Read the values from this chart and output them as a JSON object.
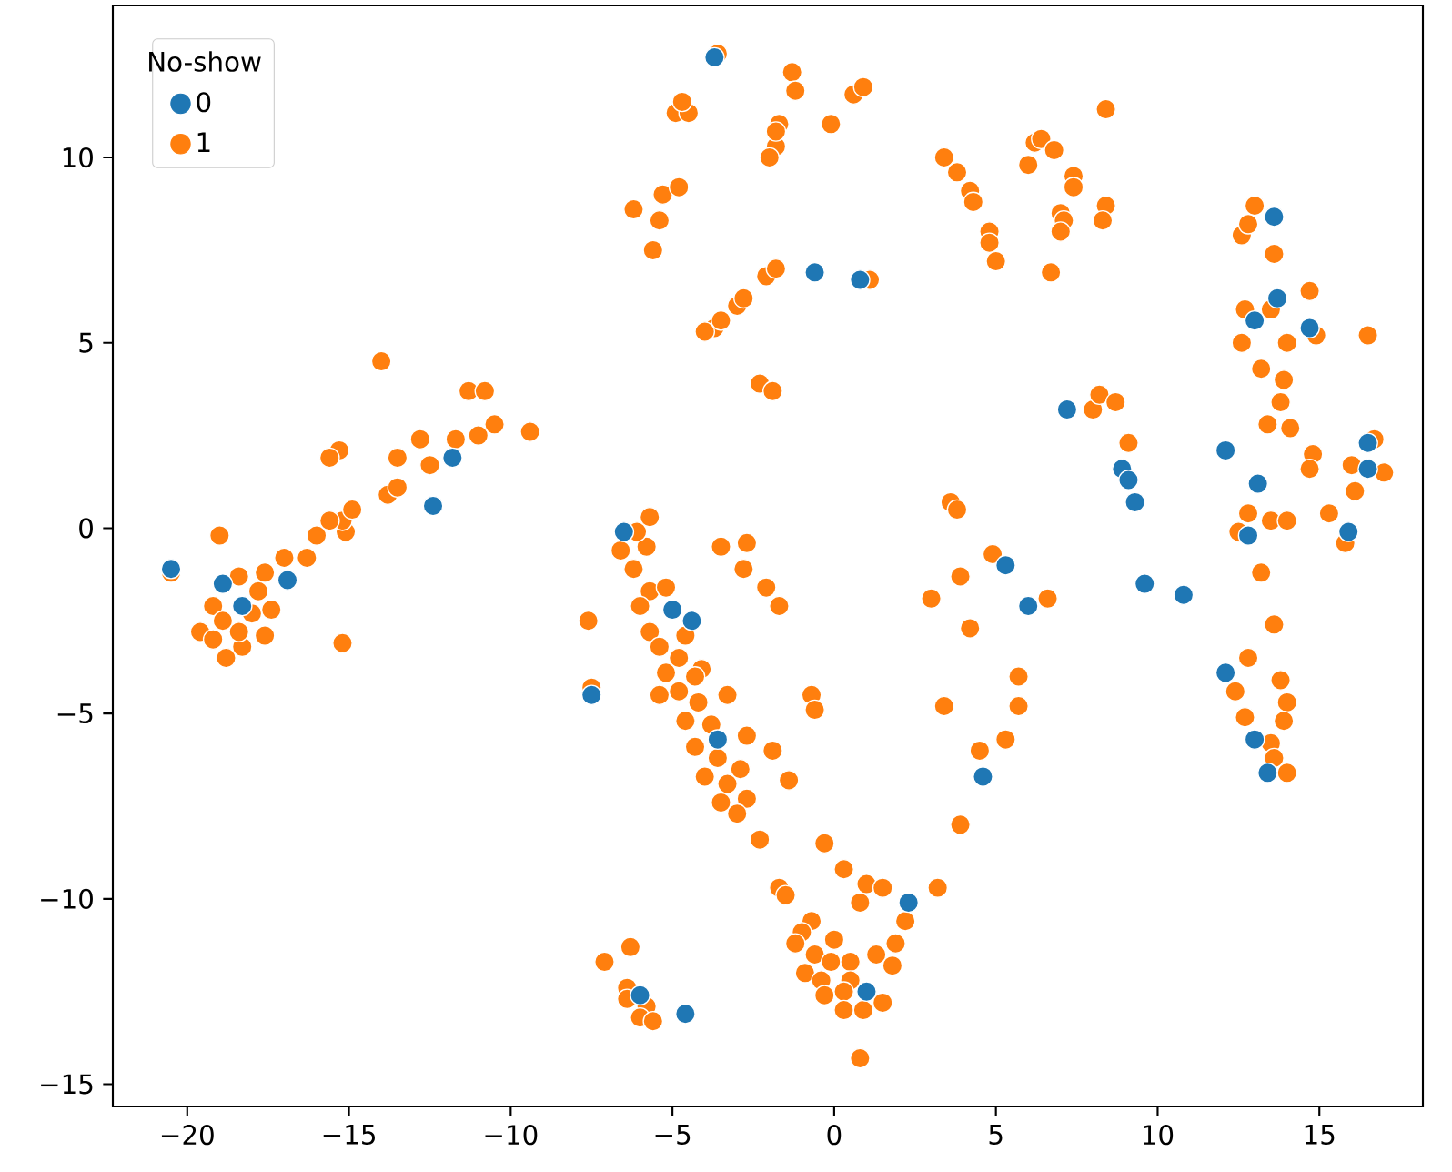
{
  "chart_data": {
    "type": "scatter",
    "legend_title": "No-show",
    "legend": "top left",
    "grid": false,
    "xlim": [
      -22.3,
      18.2
    ],
    "ylim": [
      -15.6,
      14.1
    ],
    "xticks": [
      {
        "value": -20,
        "label": "−20"
      },
      {
        "value": -15,
        "label": "−15"
      },
      {
        "value": -10,
        "label": "−10"
      },
      {
        "value": -5,
        "label": "−5"
      },
      0,
      5,
      10,
      15
    ],
    "yticks": [
      {
        "value": -15,
        "label": "−15"
      },
      {
        "value": -10,
        "label": "−10"
      },
      {
        "value": -5,
        "label": "−5"
      },
      0,
      5,
      10
    ],
    "series": [
      {
        "name": "0",
        "color": "#1f77b4",
        "x": [
          -20.5,
          -18.9,
          -16.9,
          -18.3,
          -12.4,
          -11.8,
          -3.7,
          -0.6,
          0.8,
          7.2,
          8.9,
          9.1,
          9.3,
          9.6,
          10.8,
          5.3,
          6.0,
          13.6,
          13.7,
          13.0,
          14.7,
          12.1,
          13.1,
          16.5,
          16.5,
          15.9,
          12.8,
          12.1,
          13.0,
          13.4,
          -6.5,
          -5.0,
          -4.4,
          -3.6,
          -7.5,
          2.3,
          1.0,
          -4.6,
          -6.0,
          4.6
        ],
        "values": [
          -1.1,
          -1.5,
          -1.4,
          -2.1,
          0.6,
          1.9,
          12.7,
          6.9,
          6.7,
          3.2,
          1.6,
          1.3,
          0.7,
          -1.5,
          -1.8,
          -1.0,
          -2.1,
          8.4,
          6.2,
          5.6,
          5.4,
          2.1,
          1.2,
          2.3,
          1.6,
          -0.1,
          -0.2,
          -3.9,
          -5.7,
          -6.6,
          -0.1,
          -2.2,
          -2.5,
          -5.7,
          -4.5,
          -10.1,
          -12.5,
          -13.1,
          -12.6,
          -6.7
        ]
      },
      {
        "name": "1",
        "color": "#ff7f0e",
        "x": [
          -20.5,
          -19.0,
          -17.0,
          -16.3,
          -16.0,
          -15.1,
          -15.2,
          -15.6,
          -14.9,
          -13.8,
          -13.5,
          -15.3,
          -15.6,
          -13.5,
          -14.0,
          -12.5,
          -12.8,
          -11.7,
          -11.0,
          -10.5,
          -11.3,
          -10.8,
          -9.4,
          -15.2,
          -19.2,
          -19.6,
          -18.9,
          -19.2,
          -18.8,
          -18.3,
          -18.4,
          -18.0,
          -17.8,
          -17.6,
          -17.4,
          -17.6,
          -18.4,
          -3.6,
          -1.3,
          -1.2,
          0.6,
          0.9,
          -0.1,
          -4.9,
          -4.5,
          -4.7,
          -1.7,
          -1.8,
          -2.0,
          -1.8,
          -6.2,
          -5.3,
          -4.8,
          -5.4,
          -5.6,
          -2.1,
          -1.8,
          -3.0,
          -2.8,
          -3.7,
          -4.0,
          -3.5,
          -2.3,
          -1.9,
          1.1,
          3.4,
          3.8,
          4.2,
          4.3,
          4.8,
          4.8,
          5.0,
          8.4,
          6.2,
          6.4,
          6.8,
          6.0,
          7.4,
          7.4,
          7.0,
          7.1,
          7.0,
          8.4,
          8.3,
          6.7,
          8.0,
          8.2,
          8.7,
          9.1,
          13.0,
          12.6,
          12.8,
          13.6,
          14.7,
          13.5,
          12.7,
          12.6,
          14.0,
          14.9,
          16.5,
          13.2,
          13.9,
          13.8,
          13.4,
          14.1,
          14.8,
          14.7,
          16.0,
          16.7,
          17.0,
          16.1,
          15.3,
          15.8,
          12.8,
          12.5,
          13.5,
          14.0,
          13.2,
          12.4,
          13.6,
          12.7,
          13.8,
          14.0,
          13.9,
          13.5,
          13.6,
          14.0,
          12.8,
          3.0,
          3.9,
          4.9,
          4.2,
          3.4,
          4.5,
          5.3,
          3.9,
          5.7,
          5.7,
          6.6,
          3.6,
          3.8,
          -6.2,
          -5.7,
          -5.2,
          -6.0,
          -5.7,
          -5.4,
          -4.6,
          -4.8,
          -5.2,
          -4.1,
          -4.3,
          -5.4,
          -4.8,
          -4.2,
          -3.3,
          -4.6,
          -3.8,
          -4.3,
          -2.7,
          -3.6,
          -2.9,
          -4.0,
          -1.9,
          -3.3,
          -2.7,
          -3.5,
          -3.0,
          -1.4,
          -2.3,
          -0.7,
          -0.6,
          -7.6,
          -7.5,
          -6.6,
          -5.8,
          -3.5,
          -2.7,
          -2.8,
          -2.1,
          -1.7,
          -5.7,
          -6.1,
          -0.3,
          0.3,
          1.0,
          1.5,
          0.8,
          3.2,
          -1.7,
          -1.5,
          2.2,
          1.9,
          1.8,
          1.3,
          -0.7,
          -1.0,
          -1.2,
          0.0,
          -0.6,
          -0.1,
          0.5,
          -0.9,
          -0.4,
          0.5,
          0.3,
          -0.3,
          0.3,
          0.9,
          1.5,
          0.8,
          -7.1,
          -6.3,
          -6.4,
          -6.4,
          -5.8,
          -6.0,
          -5.6
        ],
        "values": [
          -1.2,
          -0.2,
          -0.8,
          -0.8,
          -0.2,
          -0.1,
          0.2,
          0.2,
          0.5,
          0.9,
          1.1,
          2.1,
          1.9,
          1.9,
          4.5,
          1.7,
          2.4,
          2.4,
          2.5,
          2.8,
          3.7,
          3.7,
          2.6,
          -3.1,
          -2.1,
          -2.8,
          -2.5,
          -3.0,
          -3.5,
          -3.2,
          -2.8,
          -2.3,
          -1.7,
          -1.2,
          -2.2,
          -2.9,
          -1.3,
          12.8,
          12.3,
          11.8,
          11.7,
          11.9,
          10.9,
          11.2,
          11.2,
          11.5,
          10.9,
          10.3,
          10.0,
          10.7,
          8.6,
          9.0,
          9.2,
          8.3,
          7.5,
          6.8,
          7.0,
          6.0,
          6.2,
          5.4,
          5.3,
          5.6,
          3.9,
          3.7,
          6.7,
          10.0,
          9.6,
          9.1,
          8.8,
          8.0,
          7.7,
          7.2,
          11.3,
          10.4,
          10.5,
          10.2,
          9.8,
          9.5,
          9.2,
          8.5,
          8.3,
          8.0,
          8.7,
          8.3,
          6.9,
          3.2,
          3.6,
          3.4,
          2.3,
          8.7,
          7.9,
          8.2,
          7.4,
          6.4,
          5.9,
          5.9,
          5.0,
          5.0,
          5.2,
          5.2,
          4.3,
          4.0,
          3.4,
          2.8,
          2.7,
          2.0,
          1.6,
          1.7,
          2.4,
          1.5,
          1.0,
          0.4,
          -0.4,
          0.4,
          -0.1,
          0.2,
          0.2,
          -1.2,
          -4.4,
          -2.6,
          -5.1,
          -4.1,
          -4.7,
          -5.2,
          -5.8,
          -6.2,
          -6.6,
          -3.5,
          -1.9,
          -1.3,
          -0.7,
          -2.7,
          -4.8,
          -6.0,
          -5.7,
          -8.0,
          -4.0,
          -4.8,
          -1.9,
          0.7,
          0.5,
          -1.1,
          -1.7,
          -1.6,
          -2.1,
          -2.8,
          -3.2,
          -2.9,
          -3.5,
          -3.9,
          -3.8,
          -4.0,
          -4.5,
          -4.4,
          -4.7,
          -4.5,
          -5.2,
          -5.3,
          -5.9,
          -5.6,
          -6.2,
          -6.5,
          -6.7,
          -6.0,
          -6.9,
          -7.3,
          -7.4,
          -7.7,
          -6.8,
          -8.4,
          -4.5,
          -4.9,
          -2.5,
          -4.3,
          -0.6,
          -0.5,
          -0.5,
          -0.4,
          -1.1,
          -1.6,
          -2.1,
          0.3,
          -0.1,
          -8.5,
          -9.2,
          -9.6,
          -9.7,
          -10.1,
          -9.7,
          -9.7,
          -9.9,
          -10.6,
          -11.2,
          -11.8,
          -11.5,
          -10.6,
          -10.9,
          -11.2,
          -11.1,
          -11.5,
          -11.7,
          -11.7,
          -12.0,
          -12.2,
          -12.2,
          -12.5,
          -12.6,
          -13.0,
          -13.0,
          -12.8,
          -14.3,
          -11.7,
          -11.3,
          -12.4,
          -12.7,
          -12.9,
          -13.2,
          -13.3
        ]
      }
    ]
  }
}
